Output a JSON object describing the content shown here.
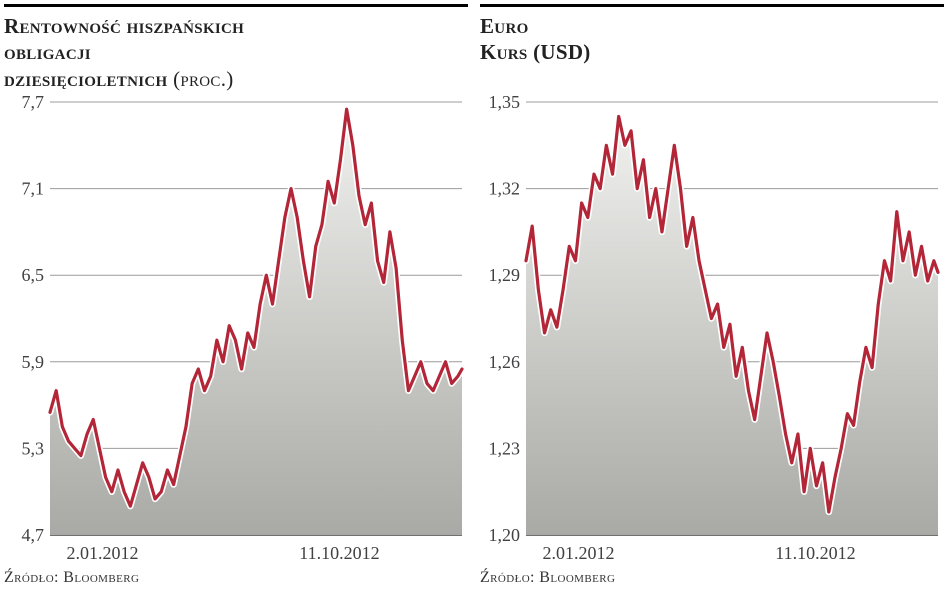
{
  "charts": [
    {
      "id": "spain-yield",
      "title_lines": [
        "Rentowność hiszpańskich",
        "obligacji",
        "dziesięcioletnich"
      ],
      "unit": "(proc.)",
      "source": "Źródło: Bloomberg",
      "type": "area",
      "ylim": [
        4.7,
        7.7
      ],
      "ytick_step": 0.6,
      "yticks": [
        "4,7",
        "5,3",
        "5,9",
        "6,5",
        "7,1",
        "7,7"
      ],
      "xlim": [
        0,
        100
      ],
      "xtick_positions": [
        4,
        80
      ],
      "xtick_labels": [
        "2.01.2012",
        "11.10.2012"
      ],
      "line_color": "#b32638",
      "line_outline_color": "#ffffff",
      "line_width": 3.2,
      "line_outline_width": 6.5,
      "fill_gradient_top": "#f1f1ef",
      "fill_gradient_bottom": "#a9a9a5",
      "grid_color": "#9d9c99",
      "axis_color": "#414141",
      "background_color": "#ffffff",
      "label_fontsize": 18,
      "label_color": "#414141",
      "data": [
        [
          0,
          5.55
        ],
        [
          1.5,
          5.7
        ],
        [
          3,
          5.45
        ],
        [
          4.5,
          5.35
        ],
        [
          6,
          5.3
        ],
        [
          7.5,
          5.25
        ],
        [
          9,
          5.4
        ],
        [
          10.5,
          5.5
        ],
        [
          12,
          5.3
        ],
        [
          13.5,
          5.1
        ],
        [
          15,
          5.0
        ],
        [
          16.5,
          5.15
        ],
        [
          18,
          5.0
        ],
        [
          19.5,
          4.9
        ],
        [
          21,
          5.05
        ],
        [
          22.5,
          5.2
        ],
        [
          24,
          5.1
        ],
        [
          25.5,
          4.95
        ],
        [
          27,
          5.0
        ],
        [
          28.5,
          5.15
        ],
        [
          30,
          5.05
        ],
        [
          31.5,
          5.25
        ],
        [
          33,
          5.45
        ],
        [
          34.5,
          5.75
        ],
        [
          36,
          5.85
        ],
        [
          37.5,
          5.7
        ],
        [
          39,
          5.8
        ],
        [
          40.5,
          6.05
        ],
        [
          42,
          5.9
        ],
        [
          43.5,
          6.15
        ],
        [
          45,
          6.05
        ],
        [
          46.5,
          5.85
        ],
        [
          48,
          6.1
        ],
        [
          49.5,
          6.0
        ],
        [
          51,
          6.3
        ],
        [
          52.5,
          6.5
        ],
        [
          54,
          6.3
        ],
        [
          55.5,
          6.6
        ],
        [
          57,
          6.9
        ],
        [
          58.5,
          7.1
        ],
        [
          60,
          6.9
        ],
        [
          61.5,
          6.6
        ],
        [
          63,
          6.35
        ],
        [
          64.5,
          6.7
        ],
        [
          66,
          6.85
        ],
        [
          67.5,
          7.15
        ],
        [
          69,
          7.0
        ],
        [
          70.5,
          7.3
        ],
        [
          72,
          7.65
        ],
        [
          73.5,
          7.4
        ],
        [
          75,
          7.05
        ],
        [
          76.5,
          6.85
        ],
        [
          78,
          7.0
        ],
        [
          79.5,
          6.6
        ],
        [
          81,
          6.45
        ],
        [
          82.5,
          6.8
        ],
        [
          84,
          6.55
        ],
        [
          85.5,
          6.05
        ],
        [
          87,
          5.7
        ],
        [
          88.5,
          5.8
        ],
        [
          90,
          5.9
        ],
        [
          91.5,
          5.75
        ],
        [
          93,
          5.7
        ],
        [
          94.5,
          5.8
        ],
        [
          96,
          5.9
        ],
        [
          97.5,
          5.75
        ],
        [
          99,
          5.8
        ],
        [
          100,
          5.85
        ]
      ]
    },
    {
      "id": "euro-usd",
      "title_lines": [
        "Euro",
        "Kurs (USD)"
      ],
      "unit": "",
      "source": "Źródło: Bloomberg",
      "type": "area",
      "ylim": [
        1.2,
        1.35
      ],
      "ytick_step": 0.03,
      "yticks": [
        "1,20",
        "1,23",
        "1,26",
        "1,29",
        "1,32",
        "1,35"
      ],
      "xlim": [
        0,
        100
      ],
      "xtick_positions": [
        4,
        80
      ],
      "xtick_labels": [
        "2.01.2012",
        "11.10.2012"
      ],
      "line_color": "#b32638",
      "line_outline_color": "#ffffff",
      "line_width": 3.2,
      "line_outline_width": 6.5,
      "fill_gradient_top": "#f1f1ef",
      "fill_gradient_bottom": "#a9a9a5",
      "grid_color": "#9d9c99",
      "axis_color": "#414141",
      "background_color": "#ffffff",
      "label_fontsize": 18,
      "label_color": "#414141",
      "data": [
        [
          0,
          1.295
        ],
        [
          1.5,
          1.307
        ],
        [
          3,
          1.285
        ],
        [
          4.5,
          1.27
        ],
        [
          6,
          1.278
        ],
        [
          7.5,
          1.272
        ],
        [
          9,
          1.285
        ],
        [
          10.5,
          1.3
        ],
        [
          12,
          1.295
        ],
        [
          13.5,
          1.315
        ],
        [
          15,
          1.31
        ],
        [
          16.5,
          1.325
        ],
        [
          18,
          1.32
        ],
        [
          19.5,
          1.335
        ],
        [
          21,
          1.325
        ],
        [
          22.5,
          1.345
        ],
        [
          24,
          1.335
        ],
        [
          25.5,
          1.34
        ],
        [
          27,
          1.32
        ],
        [
          28.5,
          1.33
        ],
        [
          30,
          1.31
        ],
        [
          31.5,
          1.32
        ],
        [
          33,
          1.305
        ],
        [
          34.5,
          1.32
        ],
        [
          36,
          1.335
        ],
        [
          37.5,
          1.32
        ],
        [
          39,
          1.3
        ],
        [
          40.5,
          1.31
        ],
        [
          42,
          1.295
        ],
        [
          43.5,
          1.285
        ],
        [
          45,
          1.275
        ],
        [
          46.5,
          1.28
        ],
        [
          48,
          1.265
        ],
        [
          49.5,
          1.273
        ],
        [
          51,
          1.255
        ],
        [
          52.5,
          1.265
        ],
        [
          54,
          1.25
        ],
        [
          55.5,
          1.24
        ],
        [
          57,
          1.255
        ],
        [
          58.5,
          1.27
        ],
        [
          60,
          1.26
        ],
        [
          61.5,
          1.248
        ],
        [
          63,
          1.235
        ],
        [
          64.5,
          1.225
        ],
        [
          66,
          1.235
        ],
        [
          67.5,
          1.215
        ],
        [
          69,
          1.23
        ],
        [
          70.5,
          1.217
        ],
        [
          72,
          1.225
        ],
        [
          73.5,
          1.208
        ],
        [
          75,
          1.22
        ],
        [
          76.5,
          1.23
        ],
        [
          78,
          1.242
        ],
        [
          79.5,
          1.238
        ],
        [
          81,
          1.253
        ],
        [
          82.5,
          1.265
        ],
        [
          84,
          1.258
        ],
        [
          85.5,
          1.28
        ],
        [
          87,
          1.295
        ],
        [
          88.5,
          1.288
        ],
        [
          90,
          1.312
        ],
        [
          91.5,
          1.295
        ],
        [
          93,
          1.305
        ],
        [
          94.5,
          1.29
        ],
        [
          96,
          1.3
        ],
        [
          97.5,
          1.288
        ],
        [
          99,
          1.295
        ],
        [
          100,
          1.291
        ]
      ]
    }
  ]
}
